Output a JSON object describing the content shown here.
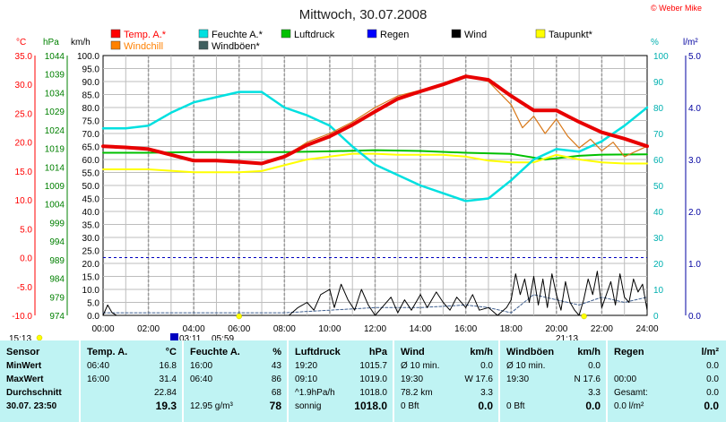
{
  "chart_data": {
    "type": "line",
    "title": "Mittwoch, 30.07.2008",
    "copyright": "© Weber Mike",
    "x_ticks": [
      "00:00",
      "02:00",
      "04:00",
      "06:00",
      "08:00",
      "10:00",
      "12:00",
      "14:00",
      "16:00",
      "18:00",
      "20:00",
      "22:00",
      "24:00"
    ],
    "axes": {
      "temp": {
        "unit": "°C",
        "ticks": [
          "35.0",
          "30.0",
          "25.0",
          "20.0",
          "15.0",
          "10.0",
          "5.0",
          "0.0",
          "-5.0",
          "-10.0"
        ],
        "range": [
          -10,
          35
        ],
        "color": "#ff0000"
      },
      "pressure": {
        "unit": "hPa",
        "ticks": [
          "1044",
          "1039",
          "1034",
          "1029",
          "1024",
          "1019",
          "1014",
          "1009",
          "1004",
          "999",
          "994",
          "989",
          "984",
          "979",
          "974"
        ],
        "color": "#008000"
      },
      "wind": {
        "unit": "km/h",
        "ticks": [
          "100.0",
          "95.0",
          "90.0",
          "85.0",
          "80.0",
          "75.0",
          "70.0",
          "65.0",
          "60.0",
          "55.0",
          "50.0",
          "45.0",
          "40.0",
          "35.0",
          "30.0",
          "25.0",
          "20.0",
          "15.0",
          "10.0",
          "5.0",
          "0.0"
        ],
        "range": [
          0,
          100
        ],
        "color": "#000000"
      },
      "humidity": {
        "unit": "%",
        "ticks": [
          "100",
          "90",
          "80",
          "70",
          "60",
          "50",
          "40",
          "30",
          "20",
          "10",
          "0"
        ],
        "range": [
          0,
          100
        ],
        "color": "#00b0b0"
      },
      "rain": {
        "unit": "l/m²",
        "ticks": [
          "5.0",
          "4.0",
          "3.0",
          "2.0",
          "1.0",
          "0.0"
        ],
        "range": [
          0,
          5
        ],
        "color": "#0000a0"
      }
    },
    "legend": [
      {
        "label": "Temp. A.*",
        "color": "#ff0000"
      },
      {
        "label": "Feuchte A.*",
        "color": "#00e0e0"
      },
      {
        "label": "Luftdruck",
        "color": "#00c000"
      },
      {
        "label": "Regen",
        "color": "#0000ff"
      },
      {
        "label": "Wind",
        "color": "#000000"
      },
      {
        "label": "Taupunkt*",
        "color": "#ffff00"
      },
      {
        "label": "Windchill",
        "color": "#ff8000"
      },
      {
        "label": "Windböen*",
        "color": "#406060"
      }
    ],
    "sun_times": {
      "sunrise": "05:59",
      "sunset": "21:13",
      "moonrise": "15:13",
      "moonset": "03:11"
    },
    "series": [
      {
        "name": "Temp. A.*",
        "axis": "temp",
        "x": [
          0,
          1,
          2,
          3,
          4,
          5,
          6,
          7,
          8,
          9,
          10,
          11,
          12,
          13,
          14,
          15,
          16,
          17,
          18,
          19,
          20,
          21,
          22,
          23,
          24
        ],
        "values": [
          19.3,
          19.1,
          18.8,
          17.8,
          16.8,
          16.8,
          16.6,
          16.3,
          17.5,
          19.5,
          21.0,
          23.0,
          25.3,
          27.5,
          28.8,
          30.0,
          31.4,
          30.8,
          28.0,
          25.5,
          25.5,
          23.5,
          21.7,
          20.6,
          19.3
        ]
      },
      {
        "name": "Feuchte A.*",
        "axis": "humidity",
        "x": [
          0,
          1,
          2,
          3,
          4,
          5,
          6,
          7,
          8,
          9,
          10,
          11,
          12,
          13,
          14,
          15,
          16,
          17,
          18,
          19,
          20,
          21,
          22,
          23,
          24
        ],
        "values": [
          72,
          72,
          73,
          78,
          82,
          84,
          86,
          86,
          80,
          77,
          73,
          65,
          58,
          54,
          50,
          47,
          44,
          45,
          52,
          60,
          64,
          63,
          67,
          73,
          80
        ]
      },
      {
        "name": "Luftdruck",
        "axis": "pressure",
        "x": [
          0,
          2,
          4,
          6,
          8,
          10,
          12,
          14,
          16,
          18,
          19.5,
          21,
          22,
          24
        ],
        "values": [
          1017.8,
          1017.8,
          1018.0,
          1018.0,
          1018.0,
          1018.2,
          1018.5,
          1018.3,
          1017.8,
          1017.5,
          1016.0,
          1017.0,
          1017.3,
          1017.4
        ]
      },
      {
        "name": "Taupunkt*",
        "axis": "temp",
        "x": [
          0,
          2,
          4,
          6,
          7,
          8,
          9,
          10,
          11,
          12,
          13,
          14,
          15,
          16,
          17,
          18,
          19,
          20,
          21,
          22,
          23,
          24
        ],
        "values": [
          15.3,
          15.3,
          14.8,
          14.8,
          15.0,
          16.0,
          17.0,
          17.5,
          18.0,
          18.0,
          17.8,
          17.8,
          17.8,
          17.5,
          16.8,
          16.5,
          16.5,
          17.8,
          17.0,
          16.5,
          16.3,
          16.3
        ]
      },
      {
        "name": "Windchill",
        "axis": "temp",
        "x": [
          0,
          1,
          2,
          3,
          4,
          5,
          6,
          7,
          8,
          9,
          10,
          11,
          12,
          13,
          14,
          15,
          16,
          17,
          18,
          18.5,
          19,
          19.5,
          20,
          20.5,
          21,
          21.5,
          22,
          22.5,
          23,
          24
        ],
        "values": [
          19.3,
          19.1,
          18.8,
          17.8,
          16.8,
          16.8,
          16.6,
          16.3,
          17.5,
          20.0,
          21.5,
          23.5,
          26.0,
          28.0,
          29.0,
          30.2,
          31.6,
          30.5,
          26.5,
          22.5,
          24.5,
          21.5,
          24.0,
          21.0,
          19.0,
          20.5,
          18.5,
          20.0,
          17.5,
          19.3
        ]
      },
      {
        "name": "Wind",
        "axis": "wind",
        "x": [
          0,
          0.2,
          0.4,
          0.6,
          3.0,
          8.2,
          8.6,
          9.0,
          9.3,
          9.6,
          10.0,
          10.2,
          10.5,
          10.8,
          11.1,
          11.4,
          11.7,
          12.0,
          12.3,
          12.7,
          13.0,
          13.3,
          13.6,
          14.0,
          14.3,
          14.7,
          15.0,
          15.3,
          15.6,
          16.0,
          16.3,
          16.6,
          17.0,
          17.4,
          17.8,
          18.0,
          18.2,
          18.4,
          18.6,
          18.8,
          19.0,
          19.2,
          19.4,
          19.6,
          19.8,
          20.0,
          20.2,
          20.4,
          20.6,
          20.8,
          21.0,
          21.2,
          21.4,
          21.6,
          21.8,
          22.0,
          22.2,
          22.4,
          22.6,
          22.8,
          23.0,
          23.2,
          23.4,
          23.6,
          23.8,
          24.0
        ],
        "values": [
          0,
          4,
          1,
          0,
          0,
          0,
          3,
          5,
          2,
          8,
          10,
          3,
          12,
          6,
          2,
          10,
          4,
          0,
          3,
          7,
          1,
          6,
          2,
          8,
          3,
          9,
          5,
          2,
          7,
          3,
          8,
          2,
          3,
          0,
          3,
          6,
          16,
          8,
          14,
          5,
          15,
          4,
          14,
          3,
          16,
          8,
          2,
          13,
          5,
          2,
          0,
          6,
          14,
          8,
          17,
          3,
          8,
          13,
          4,
          16,
          7,
          5,
          14,
          9,
          12,
          2
        ]
      },
      {
        "name": "Windböen*",
        "axis": "wind",
        "x": [
          0,
          8,
          10,
          12,
          14,
          16,
          17,
          18,
          19,
          20,
          21,
          22,
          23,
          24
        ],
        "values": [
          1,
          1,
          2,
          3,
          3,
          4,
          3,
          1,
          8,
          6,
          4,
          7,
          5,
          7
        ]
      }
    ],
    "rain_values": [
      0
    ]
  },
  "stats": {
    "groups": [
      {
        "header": [
          "Sensor"
        ],
        "rows": [
          [
            "MinWert"
          ],
          [
            "MaxWert"
          ],
          [
            "Durchschnitt"
          ],
          [
            "30.07.  23:50"
          ]
        ]
      },
      {
        "header": [
          "Temp. A.",
          "°C"
        ],
        "rows": [
          [
            "06:40",
            "16.8"
          ],
          [
            "16:00",
            "31.4"
          ],
          [
            "",
            "22.84"
          ],
          [
            "",
            "19.3"
          ]
        ]
      },
      {
        "header": [
          "Feuchte A.",
          "%"
        ],
        "rows": [
          [
            "16:00",
            "43"
          ],
          [
            "06:40",
            "86"
          ],
          [
            "",
            "68"
          ],
          [
            "12.95 g/m³",
            "78"
          ]
        ]
      },
      {
        "header": [
          "Luftdruck",
          "hPa"
        ],
        "rows": [
          [
            "19:20",
            "1015.7"
          ],
          [
            "09:10",
            "1019.0"
          ],
          [
            "^1.9hPa/h",
            "1018.0"
          ],
          [
            "sonnig",
            "1018.0"
          ]
        ]
      },
      {
        "header": [
          "Wind",
          "km/h"
        ],
        "rows": [
          [
            "Ø 10 min.",
            "0.0"
          ],
          [
            "19:30",
            "W 17.6"
          ],
          [
            "78.2 km",
            "3.3"
          ],
          [
            "0 Bft",
            "0.0"
          ]
        ]
      },
      {
        "header": [
          "Windböen",
          "km/h"
        ],
        "rows": [
          [
            "Ø 10 min.",
            "0.0"
          ],
          [
            "19:30",
            "N 17.6"
          ],
          [
            "",
            "3.3"
          ],
          [
            "0 Bft",
            "0.0"
          ]
        ]
      },
      {
        "header": [
          "Regen",
          "l/m²"
        ],
        "rows": [
          [
            "",
            "0.0"
          ],
          [
            "00:00",
            "0.0"
          ],
          [
            "Gesamt:",
            "0.0"
          ],
          [
            "0.0 l/m²",
            "0.0"
          ]
        ]
      }
    ]
  },
  "colors": {
    "grid": "#b0b0b0",
    "stats_bg": "#bff3f3",
    "title": "#202020",
    "accent_red": "#ff0000"
  }
}
